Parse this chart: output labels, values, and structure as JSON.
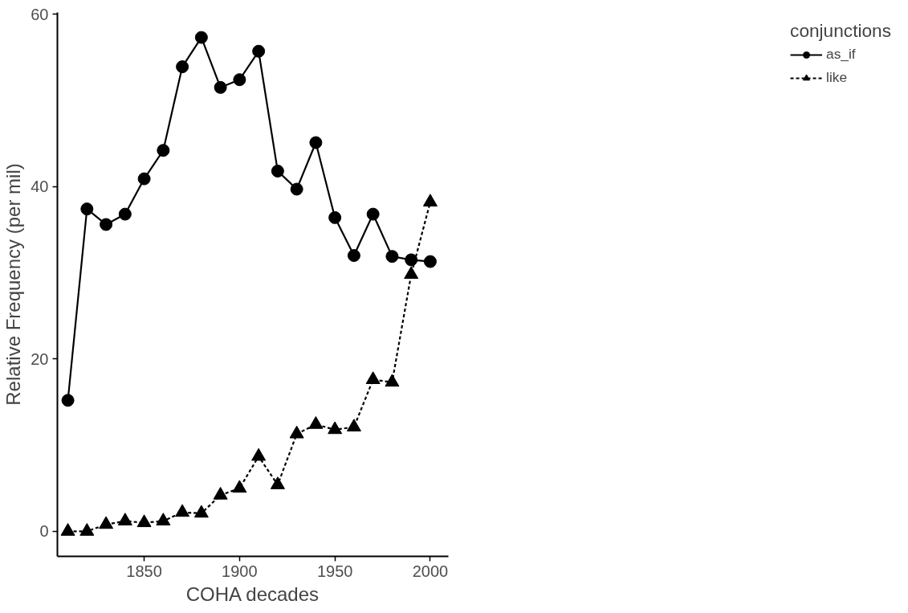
{
  "chart_data": {
    "type": "line",
    "xlabel": "COHA decades",
    "ylabel": "Relative Frequency (per mil)",
    "legend_title": "conjunctions",
    "x": [
      1810,
      1820,
      1830,
      1840,
      1850,
      1860,
      1870,
      1880,
      1890,
      1900,
      1910,
      1920,
      1930,
      1940,
      1950,
      1960,
      1970,
      1980,
      1990,
      2000
    ],
    "series": [
      {
        "name": "as_if",
        "color": "#000000",
        "marker": "circle",
        "line_style": "solid",
        "values": [
          15.2,
          37.4,
          35.6,
          36.8,
          40.9,
          44.2,
          53.9,
          57.3,
          51.5,
          52.4,
          55.7,
          41.8,
          39.7,
          45.1,
          36.4,
          32.0,
          36.8,
          31.9,
          31.5,
          31.3
        ]
      },
      {
        "name": "like",
        "color": "#000000",
        "marker": "triangle",
        "line_style": "dashed",
        "values": [
          0.0,
          0.0,
          0.8,
          1.2,
          1.0,
          1.2,
          2.2,
          2.1,
          4.2,
          5.0,
          8.7,
          5.4,
          11.3,
          12.4,
          11.8,
          12.1,
          17.6,
          17.3,
          29.8,
          38.2
        ]
      }
    ],
    "xlim": [
      1804.5,
      2009.5
    ],
    "ylim": [
      -2.9,
      60.2
    ],
    "xticks": [
      1850,
      1900,
      1950,
      2000
    ],
    "yticks": [
      0,
      20,
      40,
      60
    ],
    "grid": false,
    "legend": "right"
  }
}
